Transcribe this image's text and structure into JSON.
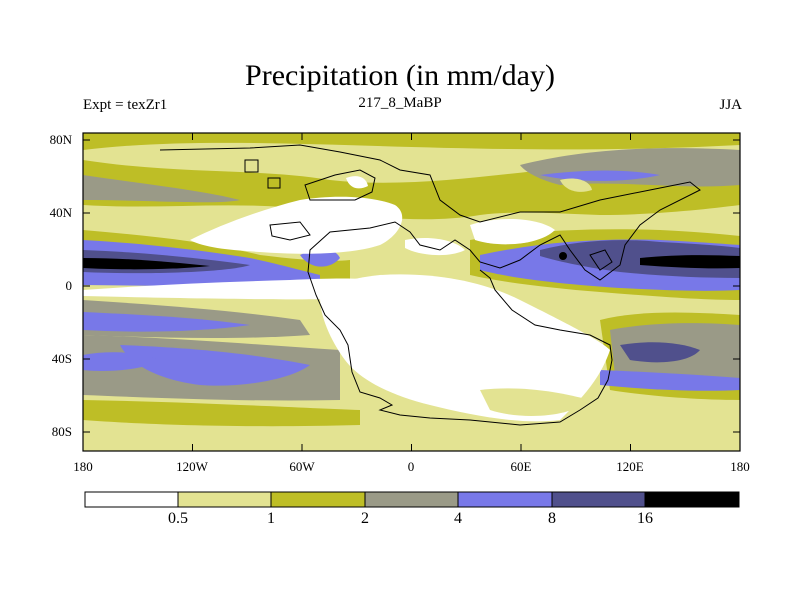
{
  "title": "Precipitation (in mm/day)",
  "subtitle_left": "Expt = texZr1",
  "subtitle_center": "217_8_MaBP",
  "subtitle_right": "JJA",
  "axes": {
    "y_ticks": [
      "80N",
      "40N",
      "0",
      "40S",
      "80S"
    ],
    "x_ticks": [
      "180",
      "120W",
      "60W",
      "0",
      "60E",
      "120E",
      "180"
    ]
  },
  "colorbar": {
    "levels": [
      "0.5",
      "1",
      "2",
      "4",
      "8",
      "16"
    ],
    "colors": [
      "#ffffff",
      "#e3e392",
      "#bebe26",
      "#9a9a87",
      "#7878e8",
      "#50508c",
      "#000000"
    ]
  }
}
